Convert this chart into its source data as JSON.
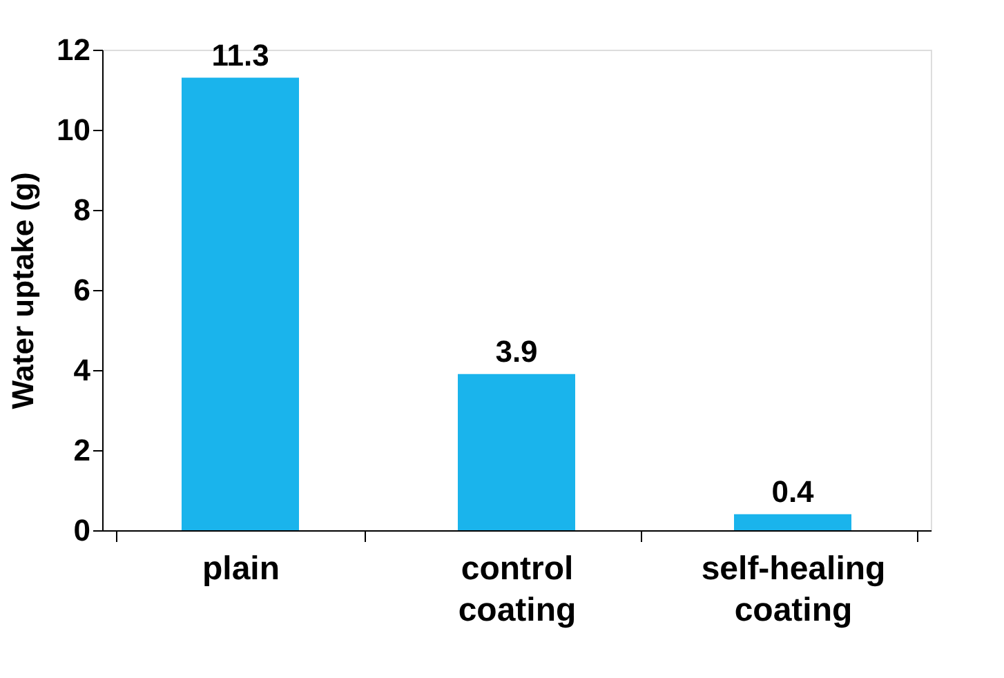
{
  "chart_data": {
    "type": "bar",
    "ylabel": "Water uptake (g)",
    "categories": [
      "plain",
      "control coating",
      "self-healing coating"
    ],
    "values": [
      11.3,
      3.9,
      0.4
    ],
    "color": "#1ab4ec",
    "ylim": [
      0,
      12
    ],
    "yticks": [
      0,
      2,
      4,
      6,
      8,
      10,
      12
    ],
    "data_labels": true,
    "grid": false
  }
}
